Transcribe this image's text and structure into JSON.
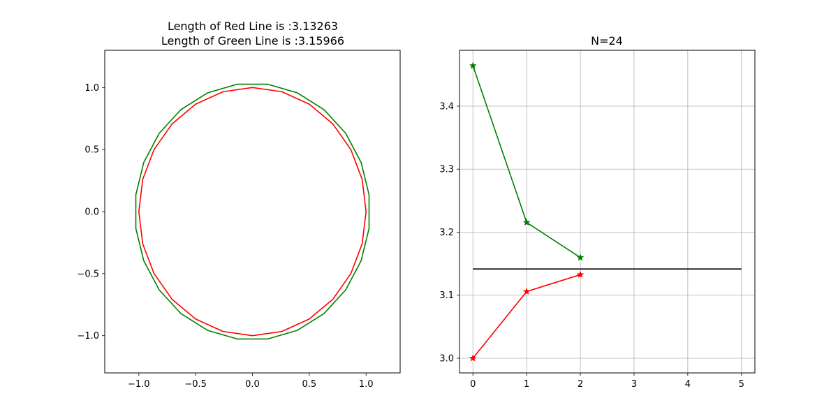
{
  "chart_data": [
    {
      "type": "line",
      "title_lines": [
        "Length of Red Line is    :3.13263",
        "Length of Green Line is  :3.15966"
      ],
      "xlim": [
        -1.3,
        1.3
      ],
      "ylim": [
        -1.3,
        1.3
      ],
      "xticks": [
        -1.0,
        -0.5,
        0.0,
        0.5,
        1.0
      ],
      "yticks": [
        -1.0,
        -0.5,
        0.0,
        0.5,
        1.0
      ],
      "xtick_labels": [
        "−1.0",
        "−0.5",
        "0.0",
        "0.5",
        "1.0"
      ],
      "ytick_labels": [
        "−1.0",
        "−0.5",
        "0.0",
        "0.5",
        "1.0"
      ],
      "grid": false,
      "series": [
        {
          "color": "#008000",
          "polygon_sides": 24,
          "radius": 1.0353,
          "offset_deg": 7.5
        },
        {
          "color": "#ff0000",
          "polygon_sides": 24,
          "radius": 1.0,
          "offset_deg": 0
        }
      ]
    },
    {
      "type": "line",
      "title": "N=24",
      "xlim": [
        -0.25,
        5.25
      ],
      "ylim": [
        2.9767,
        3.4886
      ],
      "xticks": [
        0,
        1,
        2,
        3,
        4,
        5
      ],
      "yticks": [
        3.0,
        3.1,
        3.2,
        3.3,
        3.4
      ],
      "xtick_labels": [
        "0",
        "1",
        "2",
        "3",
        "4",
        "5"
      ],
      "ytick_labels": [
        "3.0",
        "3.1",
        "3.2",
        "3.3",
        "3.4"
      ],
      "grid": true,
      "series": [
        {
          "color": "#008000",
          "marker": "star",
          "x": [
            0,
            1,
            2
          ],
          "y": [
            3.4641,
            3.2154,
            3.1597
          ]
        },
        {
          "color": "#ff0000",
          "marker": "star",
          "x": [
            0,
            1,
            2
          ],
          "y": [
            3.0,
            3.1058,
            3.1326
          ]
        },
        {
          "color": "#000000",
          "marker": "none",
          "x": [
            0,
            5
          ],
          "y": [
            3.14159,
            3.14159
          ]
        }
      ]
    }
  ]
}
